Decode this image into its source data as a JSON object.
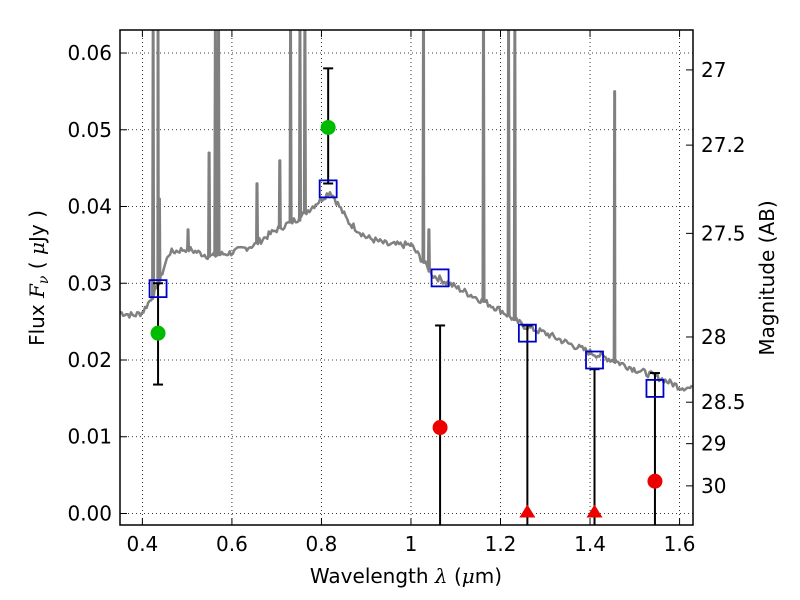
{
  "chart_data": {
    "type": "scatter",
    "xlabel": "Wavelength  λ (μm)",
    "ylabel": "Flux  Fν  ( μJy )",
    "y2label": "Magnitude (AB)",
    "xlim": [
      0.35,
      1.63
    ],
    "ylim": [
      -0.0015,
      0.063
    ],
    "grid": true,
    "x_ticks": [
      0.4,
      0.6,
      0.8,
      1.0,
      1.2,
      1.4,
      1.6
    ],
    "x_tick_labels": [
      "0.4",
      "0.6",
      "0.8",
      "1",
      "1.2",
      "1.4",
      "1.6"
    ],
    "y_ticks": [
      0.0,
      0.01,
      0.02,
      0.03,
      0.04,
      0.05,
      0.06
    ],
    "y_tick_labels": [
      "0.00",
      "0.01",
      "0.02",
      "0.03",
      "0.04",
      "0.05",
      "0.06"
    ],
    "y2_ticks": [
      {
        "label": "27",
        "flux": 0.0578
      },
      {
        "label": "27.2",
        "flux": 0.048
      },
      {
        "label": "27.5",
        "flux": 0.0365
      },
      {
        "label": "28",
        "flux": 0.023
      },
      {
        "label": "28.5",
        "flux": 0.0145
      },
      {
        "label": "29",
        "flux": 0.0091
      },
      {
        "label": "30",
        "flux": 0.0036
      }
    ],
    "colors": {
      "spectrum": "#808080",
      "detections": "#00bb00",
      "limits": "#ee0000",
      "model": "#0000cc",
      "errorbars": "#000000"
    },
    "spectrum": {
      "continuum": [
        [
          0.35,
          0.0262
        ],
        [
          0.38,
          0.0258
        ],
        [
          0.4,
          0.0262
        ],
        [
          0.43,
          0.029
        ],
        [
          0.46,
          0.034
        ],
        [
          0.5,
          0.0345
        ],
        [
          0.55,
          0.0335
        ],
        [
          0.6,
          0.034
        ],
        [
          0.65,
          0.035
        ],
        [
          0.7,
          0.037
        ],
        [
          0.75,
          0.0385
        ],
        [
          0.8,
          0.041
        ],
        [
          0.82,
          0.042
        ],
        [
          0.86,
          0.038
        ],
        [
          0.9,
          0.036
        ],
        [
          0.95,
          0.035
        ],
        [
          1.0,
          0.035
        ],
        [
          1.05,
          0.031
        ],
        [
          1.1,
          0.0295
        ],
        [
          1.15,
          0.028
        ],
        [
          1.2,
          0.0265
        ],
        [
          1.25,
          0.0245
        ],
        [
          1.3,
          0.0235
        ],
        [
          1.35,
          0.0222
        ],
        [
          1.4,
          0.021
        ],
        [
          1.45,
          0.02
        ],
        [
          1.5,
          0.0188
        ],
        [
          1.55,
          0.0178
        ],
        [
          1.6,
          0.0165
        ],
        [
          1.63,
          0.0163
        ]
      ],
      "lines": [
        {
          "x": 0.424,
          "peak": 0.063
        },
        {
          "x": 0.435,
          "peak": 0.063
        },
        {
          "x": 0.438,
          "peak": 0.041
        },
        {
          "x": 0.502,
          "peak": 0.037
        },
        {
          "x": 0.549,
          "peak": 0.047
        },
        {
          "x": 0.563,
          "peak": 0.063
        },
        {
          "x": 0.57,
          "peak": 0.063
        },
        {
          "x": 0.656,
          "peak": 0.043
        },
        {
          "x": 0.707,
          "peak": 0.046
        },
        {
          "x": 0.731,
          "peak": 0.063
        },
        {
          "x": 0.752,
          "peak": 0.063
        },
        {
          "x": 0.763,
          "peak": 0.063
        },
        {
          "x": 1.028,
          "peak": 0.063
        },
        {
          "x": 1.04,
          "peak": 0.037
        },
        {
          "x": 1.162,
          "peak": 0.063
        },
        {
          "x": 1.218,
          "peak": 0.063
        },
        {
          "x": 1.232,
          "peak": 0.063
        },
        {
          "x": 1.455,
          "peak": 0.055
        }
      ]
    },
    "series": [
      {
        "marker": "square-open",
        "color": "#0000cc",
        "points": [
          [
            0.435,
            0.0293
          ],
          [
            0.815,
            0.0423
          ],
          [
            1.065,
            0.0307
          ],
          [
            1.26,
            0.0235
          ],
          [
            1.41,
            0.02
          ],
          [
            1.545,
            0.0163
          ]
        ]
      },
      {
        "marker": "circle",
        "color": "#00bb00",
        "points": [
          {
            "x": 0.435,
            "y": 0.0235,
            "err_low": 0.0168,
            "err_high": 0.03
          },
          {
            "x": 0.815,
            "y": 0.0503,
            "err_low": 0.043,
            "err_high": 0.058
          }
        ]
      },
      {
        "marker": "circle",
        "color": "#ee0000",
        "points": [
          {
            "x": 1.065,
            "y": 0.0112,
            "err_low": -0.0015,
            "err_high": 0.0245
          },
          {
            "x": 1.545,
            "y": 0.0042,
            "err_low": -0.0015,
            "err_high": 0.0183
          }
        ]
      },
      {
        "marker": "triangle-up",
        "color": "#ee0000",
        "points": [
          {
            "x": 1.26,
            "y": 0.0,
            "err_low": -0.0015,
            "err_high": 0.0245
          },
          {
            "x": 1.41,
            "y": 0.0,
            "err_low": -0.0015,
            "err_high": 0.0188
          }
        ]
      }
    ]
  }
}
